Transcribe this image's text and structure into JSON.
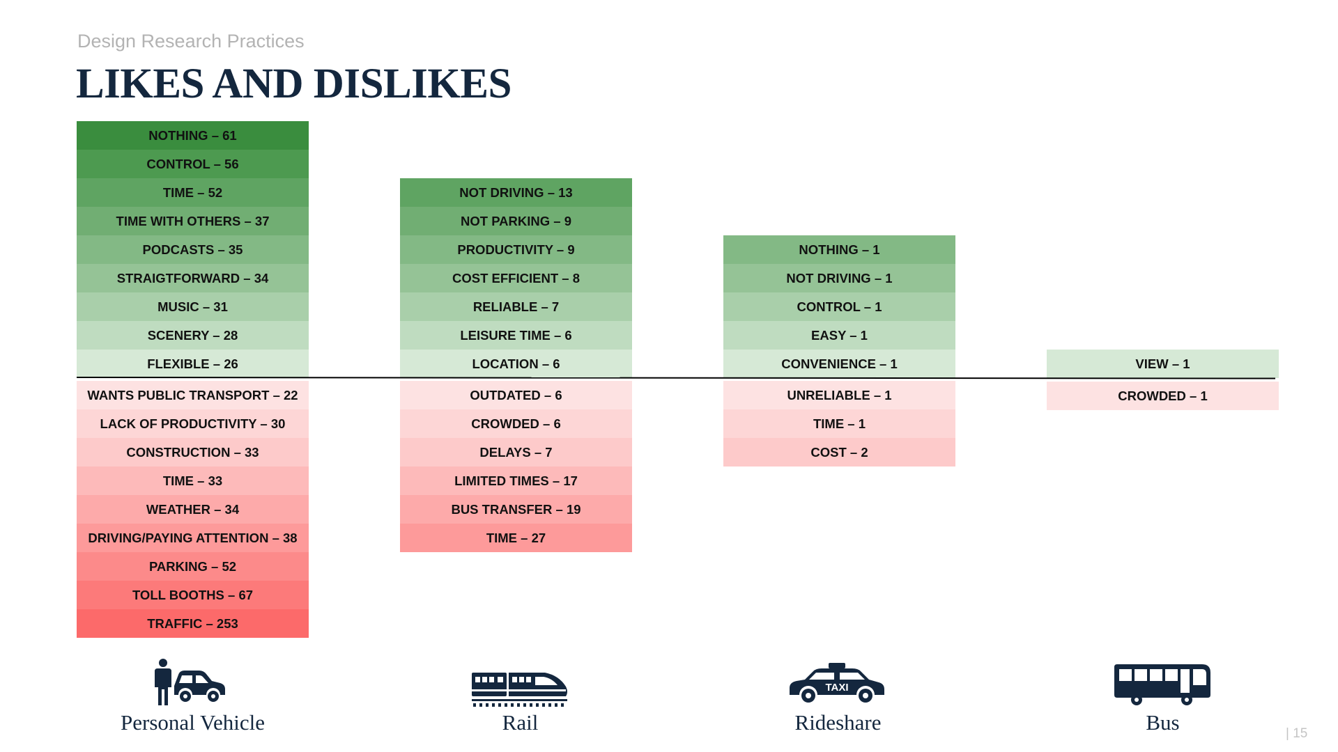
{
  "header": {
    "subtitle": "Design Research Practices",
    "title": "LIKES AND DISLIKES"
  },
  "columns": [
    {
      "mode": "Personal Vehicle",
      "icon": "person-with-car-icon",
      "likes": [
        "NOTHING – 61",
        "CONTROL – 56",
        "TIME – 52",
        "TIME WITH OTHERS – 37",
        "PODCASTS – 35",
        "STRAIGTFORWARD – 34",
        "MUSIC – 31",
        "SCENERY – 28",
        "FLEXIBLE – 26"
      ],
      "dislikes": [
        "WANTS PUBLIC TRANSPORT – 22",
        "LACK OF PRODUCTIVITY – 30",
        "CONSTRUCTION – 33",
        "TIME – 33",
        "WEATHER – 34",
        "DRIVING/PAYING ATTENTION – 38",
        "PARKING – 52",
        "TOLL BOOTHS – 67",
        "TRAFFIC – 253"
      ]
    },
    {
      "mode": "Rail",
      "icon": "train-icon",
      "likes": [
        "NOT DRIVING – 13",
        "NOT PARKING – 9",
        "PRODUCTIVITY – 9",
        "COST EFFICIENT – 8",
        "RELIABLE – 7",
        "LEISURE TIME – 6",
        "LOCATION – 6"
      ],
      "dislikes": [
        "OUTDATED – 6",
        "CROWDED – 6",
        "DELAYS – 7",
        "LIMITED TIMES – 17",
        "BUS TRANSFER – 19",
        "TIME – 27"
      ]
    },
    {
      "mode": "Rideshare",
      "icon": "taxi-icon",
      "likes": [
        "NOTHING – 1",
        "NOT DRIVING – 1",
        "CONTROL – 1",
        "EASY – 1",
        "CONVENIENCE – 1"
      ],
      "dislikes": [
        "UNRELIABLE – 1",
        "TIME – 1",
        "COST – 2"
      ]
    },
    {
      "mode": "Bus",
      "icon": "bus-icon",
      "likes": [
        "VIEW – 1"
      ],
      "dislikes": [
        "CROWDED – 1"
      ]
    }
  ],
  "colors": {
    "likes_scale": [
      "#3a8d3e",
      "#4d9a50",
      "#5fa462",
      "#71ae73",
      "#83b985",
      "#95c396",
      "#a9cfaa",
      "#bfdcc0",
      "#d6e9d6"
    ],
    "dislikes_scale": [
      "#fde2e2",
      "#fdd6d6",
      "#fdcaca",
      "#fdbaba",
      "#fdaaaa",
      "#fd9a9a",
      "#fc8a8a",
      "#fc7a7a",
      "#fc6a6a"
    ],
    "title": "#14273e"
  },
  "footer": {
    "page_number": "| 15"
  }
}
